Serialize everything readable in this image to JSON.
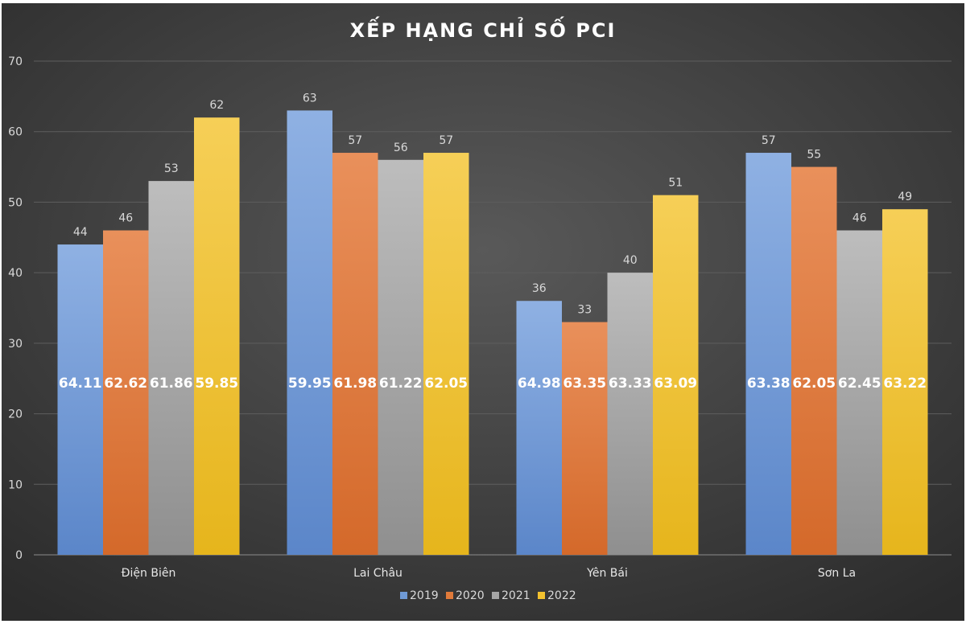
{
  "chart_data": {
    "type": "bar",
    "title": "XẾP HẠNG CHỈ SỐ PCI",
    "xlabel": "",
    "ylabel": "",
    "ylim": [
      0,
      70
    ],
    "yticks": [
      0,
      10,
      20,
      30,
      40,
      50,
      60,
      70
    ],
    "grid": true,
    "legend_position": "bottom",
    "categories": [
      "Điện Biên",
      "Lai Châu",
      "Yên Bái",
      "Sơn La"
    ],
    "series": [
      {
        "name": "2019",
        "color": "#6f9ad6",
        "values": [
          44,
          63,
          36,
          57
        ],
        "score_labels": [
          "64.11",
          "59.95",
          "64.98",
          "63.38"
        ]
      },
      {
        "name": "2020",
        "color": "#e07a3a",
        "values": [
          46,
          57,
          33,
          55
        ],
        "score_labels": [
          "62.62",
          "61.98",
          "63.35",
          "62.05"
        ]
      },
      {
        "name": "2021",
        "color": "#a6a6a6",
        "values": [
          53,
          56,
          40,
          46
        ],
        "score_labels": [
          "61.86",
          "61.22",
          "63.33",
          "62.45"
        ]
      },
      {
        "name": "2022",
        "color": "#f2c12e",
        "values": [
          62,
          57,
          51,
          49
        ],
        "score_labels": [
          "59.85",
          "62.05",
          "63.09",
          "63.22"
        ]
      }
    ]
  }
}
